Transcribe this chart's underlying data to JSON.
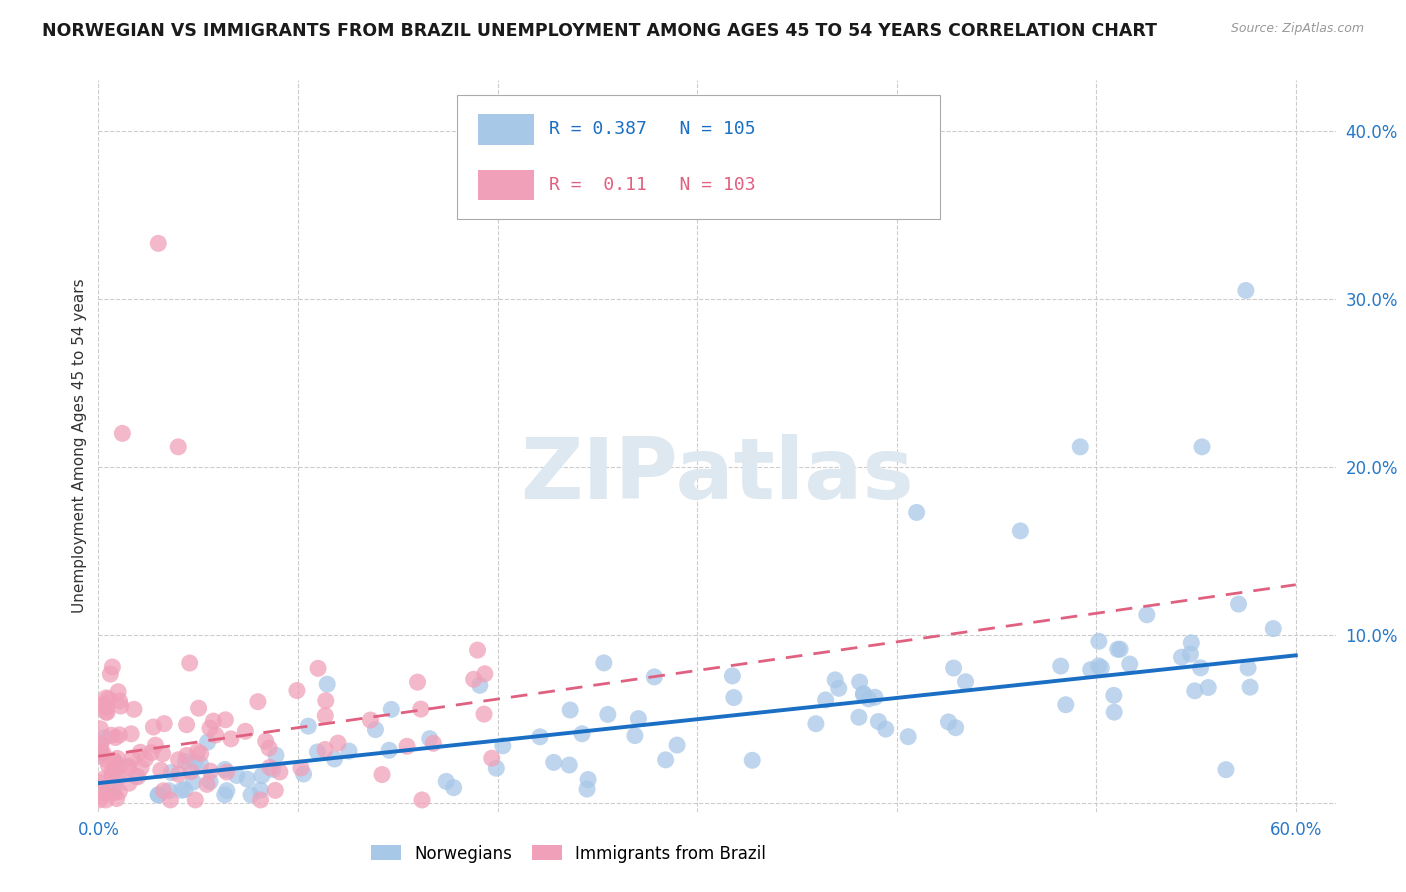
{
  "title": "NORWEGIAN VS IMMIGRANTS FROM BRAZIL UNEMPLOYMENT AMONG AGES 45 TO 54 YEARS CORRELATION CHART",
  "source": "Source: ZipAtlas.com",
  "ylabel": "Unemployment Among Ages 45 to 54 years",
  "xlim": [
    0.0,
    0.62
  ],
  "ylim": [
    -0.005,
    0.43
  ],
  "yticks": [
    0.0,
    0.1,
    0.2,
    0.3,
    0.4
  ],
  "ytick_labels": [
    "",
    "10.0%",
    "20.0%",
    "30.0%",
    "40.0%"
  ],
  "xticks": [
    0.0,
    0.1,
    0.2,
    0.3,
    0.4,
    0.5,
    0.6
  ],
  "xtick_labels": [
    "0.0%",
    "",
    "",
    "",
    "",
    "",
    "60.0%"
  ],
  "norwegian_R": 0.387,
  "norwegian_N": 105,
  "brazil_R": 0.11,
  "brazil_N": 103,
  "norwegian_color": "#a8c8e8",
  "brazil_color": "#f0a0b8",
  "norwegian_line_color": "#1a6fc4",
  "brazil_line_color": "#e06080",
  "watermark_text": "ZIPatlas",
  "watermark_color": "#dde8f0",
  "title_fontsize": 12.5,
  "axis_label_fontsize": 11,
  "tick_label_color": "#2878c8",
  "tick_label_fontsize": 12,
  "nor_line_x0": 0.0,
  "nor_line_y0": 0.012,
  "nor_line_x1": 0.6,
  "nor_line_y1": 0.088,
  "bra_line_x0": 0.0,
  "bra_line_y0": 0.028,
  "bra_line_x1": 0.6,
  "bra_line_y1": 0.13
}
